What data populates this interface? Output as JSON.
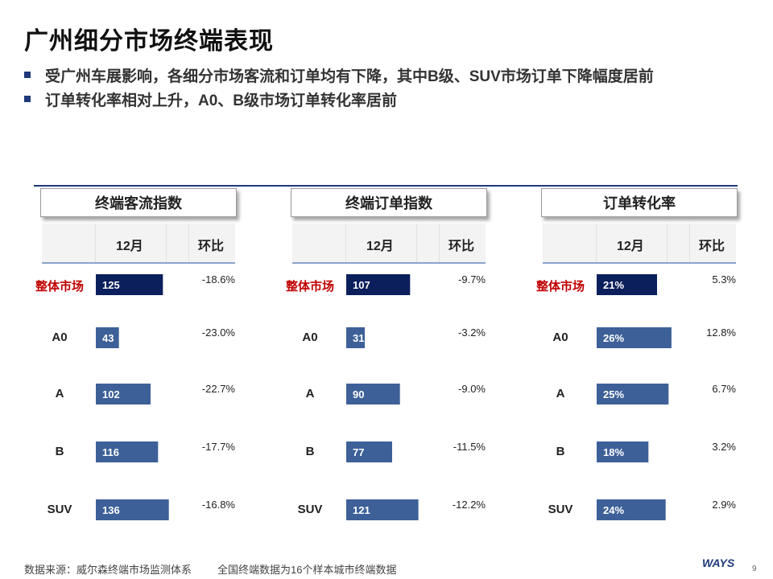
{
  "page": {
    "title": "广州细分市场终端表现",
    "bullets": [
      "受广州车展影响，各细分市场客流和订单均有下降，其中B级、SUV市场订单下降幅度居前",
      "订单转化率相对上升，A0、B级市场订单转化率居前"
    ],
    "footer": {
      "source": "数据来源：威尔森终端市场监测体系",
      "note": "全国终端数据为16个样本城市终端数据",
      "logo": "WAYS",
      "page_number": "9"
    }
  },
  "colors": {
    "overall": "#0b1f5c",
    "segment": "#3d6098",
    "overall_label": "#c00000",
    "rule": "#1f3a7a"
  },
  "chart_data": [
    {
      "type": "bar",
      "title": "终端客流指数",
      "col_month": "12月",
      "col_change": "环比",
      "categories": [
        "整体市场",
        "A0",
        "A",
        "B",
        "SUV"
      ],
      "values": [
        125,
        43,
        102,
        116,
        136
      ],
      "value_labels": [
        "125",
        "43",
        "102",
        "116",
        "136"
      ],
      "changes": [
        "-18.6%",
        "-23.0%",
        "-22.7%",
        "-17.7%",
        "-16.8%"
      ],
      "xlim": [
        0,
        150
      ]
    },
    {
      "type": "bar",
      "title": "终端订单指数",
      "col_month": "12月",
      "col_change": "环比",
      "categories": [
        "整体市场",
        "A0",
        "A",
        "B",
        "SUV"
      ],
      "values": [
        107,
        31,
        90,
        77,
        121
      ],
      "value_labels": [
        "107",
        "31",
        "90",
        "77",
        "121"
      ],
      "changes": [
        "-9.7%",
        "-3.2%",
        "-9.0%",
        "-11.5%",
        "-12.2%"
      ],
      "xlim": [
        0,
        135
      ]
    },
    {
      "type": "bar",
      "title": "订单转化率",
      "col_month": "12月",
      "col_change": "环比",
      "categories": [
        "整体市场",
        "A0",
        "A",
        "B",
        "SUV"
      ],
      "values": [
        21,
        26,
        25,
        18,
        24
      ],
      "value_labels": [
        "21%",
        "26%",
        "25%",
        "18%",
        "24%"
      ],
      "changes": [
        "5.3%",
        "12.8%",
        "6.7%",
        "3.2%",
        "2.9%"
      ],
      "xlim": [
        0,
        28
      ]
    }
  ]
}
